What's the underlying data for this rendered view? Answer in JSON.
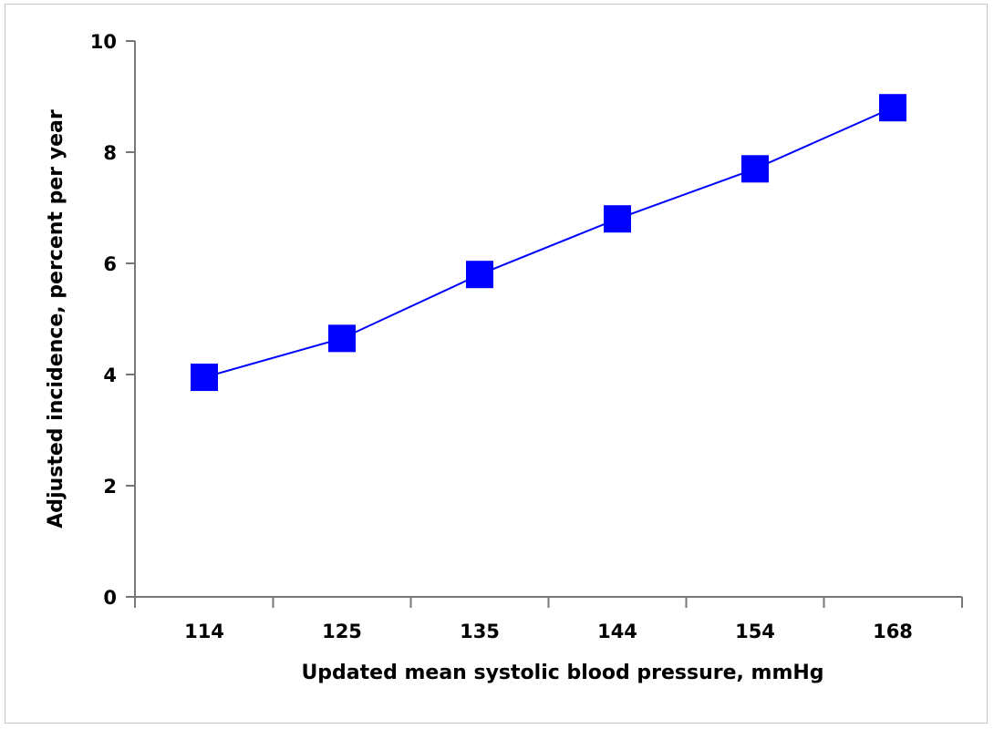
{
  "chart_data": {
    "type": "line",
    "title": "",
    "xlabel": "Updated mean systolic blood pressure, mmHg",
    "ylabel": "Adjusted incidence, percent per year",
    "categories": [
      "114",
      "125",
      "135",
      "144",
      "154",
      "168"
    ],
    "series": [
      {
        "values": [
          3.95,
          4.65,
          5.8,
          6.8,
          7.7,
          8.8
        ],
        "color": "#0000ff",
        "marker": "square"
      }
    ],
    "ylim": [
      0,
      10
    ],
    "yticks": [
      "0",
      "2",
      "4",
      "6",
      "8",
      "10"
    ],
    "grid": false,
    "legend": "none"
  }
}
